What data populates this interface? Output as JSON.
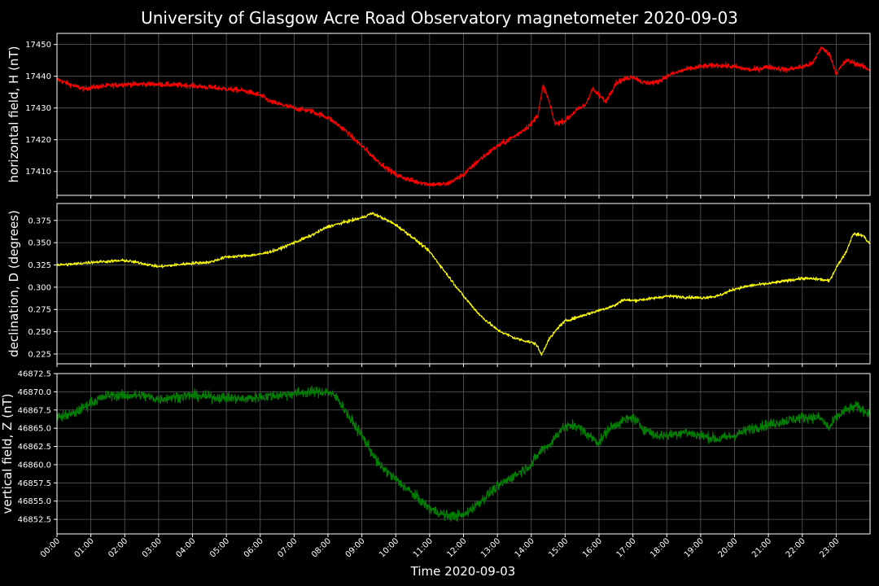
{
  "chart_data": {
    "type": "line",
    "title": "University of Glasgow Acre Road Observatory magnetometer 2020-09-03",
    "xlabel": "Time 2020-09-03",
    "x_ticks": [
      "00:00",
      "01:00",
      "02:00",
      "03:00",
      "04:00",
      "05:00",
      "06:00",
      "07:00",
      "08:00",
      "09:00",
      "10:00",
      "11:00",
      "12:00",
      "13:00",
      "14:00",
      "15:00",
      "16:00",
      "17:00",
      "18:00",
      "19:00",
      "20:00",
      "21:00",
      "22:00",
      "23:00"
    ],
    "xlim": [
      0,
      24
    ],
    "grid": true,
    "panels": [
      {
        "id": "H",
        "ylabel": "horizontal field, H (nT)",
        "color": "#ff0000",
        "ylim": [
          17402.5,
          17453.5
        ],
        "y_ticks": [
          17410,
          17420,
          17430,
          17440,
          17450
        ],
        "y_tick_labels": [
          "17410",
          "17420",
          "17430",
          "17440",
          "17450"
        ],
        "noise": 0.7,
        "series": [
          [
            0,
            17439
          ],
          [
            0.5,
            17437
          ],
          [
            0.8,
            17436
          ],
          [
            1,
            17436.5
          ],
          [
            2,
            17437.5
          ],
          [
            3,
            17437.5
          ],
          [
            4,
            17437
          ],
          [
            4.5,
            17436.5
          ],
          [
            5,
            17436
          ],
          [
            5.5,
            17435.5
          ],
          [
            6,
            17434
          ],
          [
            6.3,
            17432
          ],
          [
            7,
            17430
          ],
          [
            7.5,
            17429
          ],
          [
            8,
            17427
          ],
          [
            8.5,
            17423
          ],
          [
            9,
            17418
          ],
          [
            9.5,
            17413
          ],
          [
            10,
            17409
          ],
          [
            10.5,
            17407
          ],
          [
            11,
            17406
          ],
          [
            11.5,
            17406
          ],
          [
            12,
            17409
          ],
          [
            12.5,
            17414
          ],
          [
            13,
            17418
          ],
          [
            13.5,
            17421
          ],
          [
            14,
            17425
          ],
          [
            14.2,
            17428
          ],
          [
            14.35,
            17437
          ],
          [
            14.5,
            17433
          ],
          [
            14.7,
            17425
          ],
          [
            15,
            17426
          ],
          [
            15.3,
            17429
          ],
          [
            15.6,
            17431
          ],
          [
            15.8,
            17436
          ],
          [
            16,
            17434
          ],
          [
            16.2,
            17432
          ],
          [
            16.5,
            17438
          ],
          [
            17,
            17440
          ],
          [
            17.3,
            17438
          ],
          [
            17.7,
            17438
          ],
          [
            18,
            17440
          ],
          [
            18.5,
            17442
          ],
          [
            19,
            17443
          ],
          [
            19.5,
            17443.5
          ],
          [
            20,
            17443
          ],
          [
            20.5,
            17442
          ],
          [
            21,
            17443
          ],
          [
            21.5,
            17442
          ],
          [
            22,
            17443
          ],
          [
            22.3,
            17444
          ],
          [
            22.55,
            17449
          ],
          [
            22.8,
            17447
          ],
          [
            23,
            17441
          ],
          [
            23.3,
            17445
          ],
          [
            23.6,
            17444
          ],
          [
            24,
            17442
          ]
        ]
      },
      {
        "id": "D",
        "ylabel": "declination, D (degrees)",
        "color": "#ffff00",
        "ylim": [
          0.214,
          0.394
        ],
        "y_ticks": [
          0.225,
          0.25,
          0.275,
          0.3,
          0.325,
          0.35,
          0.375
        ],
        "y_tick_labels": [
          "0.225",
          "0.250",
          "0.275",
          "0.300",
          "0.325",
          "0.350",
          "0.375"
        ],
        "noise": 0.0015,
        "series": [
          [
            0,
            0.325
          ],
          [
            0.5,
            0.326
          ],
          [
            1,
            0.328
          ],
          [
            2,
            0.33
          ],
          [
            2.5,
            0.327
          ],
          [
            3,
            0.323
          ],
          [
            3.5,
            0.325
          ],
          [
            4,
            0.327
          ],
          [
            4.5,
            0.328
          ],
          [
            5,
            0.334
          ],
          [
            5.5,
            0.335
          ],
          [
            6,
            0.337
          ],
          [
            6.5,
            0.342
          ],
          [
            7,
            0.35
          ],
          [
            7.5,
            0.358
          ],
          [
            8,
            0.368
          ],
          [
            8.5,
            0.373
          ],
          [
            9,
            0.378
          ],
          [
            9.3,
            0.383
          ],
          [
            9.6,
            0.378
          ],
          [
            10,
            0.37
          ],
          [
            10.5,
            0.356
          ],
          [
            11,
            0.34
          ],
          [
            11.5,
            0.315
          ],
          [
            12,
            0.29
          ],
          [
            12.5,
            0.268
          ],
          [
            13,
            0.252
          ],
          [
            13.5,
            0.243
          ],
          [
            14,
            0.238
          ],
          [
            14.15,
            0.236
          ],
          [
            14.3,
            0.224
          ],
          [
            14.5,
            0.24
          ],
          [
            14.8,
            0.255
          ],
          [
            15,
            0.262
          ],
          [
            15.5,
            0.268
          ],
          [
            16,
            0.274
          ],
          [
            16.5,
            0.28
          ],
          [
            16.7,
            0.286
          ],
          [
            17,
            0.285
          ],
          [
            17.5,
            0.287
          ],
          [
            18,
            0.29
          ],
          [
            18.5,
            0.289
          ],
          [
            19,
            0.288
          ],
          [
            19.5,
            0.29
          ],
          [
            20,
            0.298
          ],
          [
            20.5,
            0.302
          ],
          [
            21,
            0.304
          ],
          [
            21.5,
            0.307
          ],
          [
            22,
            0.31
          ],
          [
            22.5,
            0.309
          ],
          [
            22.8,
            0.307
          ],
          [
            23,
            0.322
          ],
          [
            23.3,
            0.34
          ],
          [
            23.5,
            0.36
          ],
          [
            23.8,
            0.358
          ],
          [
            24,
            0.348
          ]
        ]
      },
      {
        "id": "Z",
        "ylabel": "vertical field, Z (nT)",
        "color": "#008000",
        "ylim": [
          46850.5,
          46872.5
        ],
        "y_ticks": [
          46852.5,
          46855,
          46857.5,
          46860,
          46862.5,
          46865,
          46867.5,
          46870,
          46872.5
        ],
        "y_tick_labels": [
          "46852.5",
          "46855.0",
          "46857.5",
          "46860.0",
          "46862.5",
          "46865.0",
          "46867.5",
          "46870.0",
          "46872.5"
        ],
        "noise": 0.6,
        "series": [
          [
            0,
            46866.5
          ],
          [
            0.5,
            46867
          ],
          [
            1,
            46868.5
          ],
          [
            1.5,
            46869.5
          ],
          [
            2,
            46869.5
          ],
          [
            2.5,
            46869.5
          ],
          [
            3,
            46869
          ],
          [
            3.5,
            46869.3
          ],
          [
            4,
            46869.5
          ],
          [
            4.5,
            46869.3
          ],
          [
            5,
            46869.2
          ],
          [
            5.5,
            46869
          ],
          [
            6,
            46869.3
          ],
          [
            6.5,
            46869.5
          ],
          [
            7,
            46869.8
          ],
          [
            7.5,
            46870
          ],
          [
            8,
            46870
          ],
          [
            8.3,
            46869
          ],
          [
            8.7,
            46866
          ],
          [
            9,
            46864
          ],
          [
            9.5,
            46860
          ],
          [
            10,
            46858
          ],
          [
            10.5,
            46856
          ],
          [
            11,
            46854
          ],
          [
            11.5,
            46853
          ],
          [
            12,
            46853
          ],
          [
            12.5,
            46855
          ],
          [
            13,
            46857
          ],
          [
            13.5,
            46858.5
          ],
          [
            14,
            46860
          ],
          [
            14.3,
            46862
          ],
          [
            14.6,
            46863
          ],
          [
            14.9,
            46865
          ],
          [
            15.3,
            46865.5
          ],
          [
            15.7,
            46864
          ],
          [
            16,
            46863
          ],
          [
            16.3,
            46865
          ],
          [
            16.7,
            46866
          ],
          [
            17,
            46866.5
          ],
          [
            17.3,
            46865
          ],
          [
            17.7,
            46864
          ],
          [
            18,
            46864
          ],
          [
            18.5,
            46864.5
          ],
          [
            19,
            46864
          ],
          [
            19.5,
            46863.5
          ],
          [
            20,
            46864
          ],
          [
            20.5,
            46865
          ],
          [
            21,
            46865.5
          ],
          [
            21.5,
            46866
          ],
          [
            22,
            46866.5
          ],
          [
            22.5,
            46866.5
          ],
          [
            22.8,
            46865
          ],
          [
            23,
            46866.5
          ],
          [
            23.3,
            46867.5
          ],
          [
            23.6,
            46868
          ],
          [
            24,
            46867
          ]
        ]
      }
    ]
  }
}
